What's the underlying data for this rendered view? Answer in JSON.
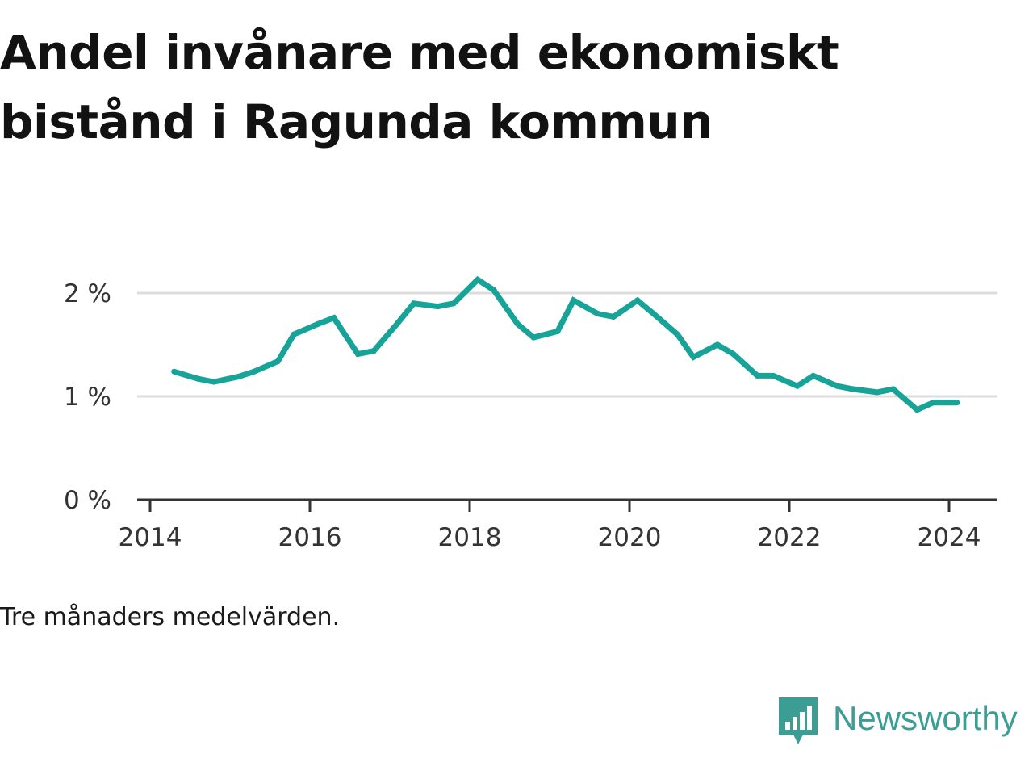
{
  "title": "Andel invånare med ekonomiskt bistånd i Ragunda kommun",
  "note": "Tre månaders medelvärden.",
  "brand": {
    "name": "Newsworthy",
    "color": "#3c9d94",
    "icon": "newsworthy-bar-chart-speech-bubble-icon"
  },
  "chart_data": {
    "type": "line",
    "title": "Andel invånare med ekonomiskt bistånd i Ragunda kommun",
    "xlabel": "",
    "ylabel": "",
    "x_ticks": [
      "2014",
      "2016",
      "2018",
      "2020",
      "2022",
      "2024"
    ],
    "y_ticks": [
      "0 %",
      "1 %",
      "2 %"
    ],
    "xlim": [
      2014,
      2024.5
    ],
    "ylim": [
      0,
      2.2
    ],
    "grid": true,
    "legend": "none",
    "line_color": "#17a398",
    "series": [
      {
        "x": [
          2014.3,
          2014.6,
          2014.8,
          2015.1,
          2015.3,
          2015.6,
          2015.8,
          2016.1,
          2016.3,
          2016.6,
          2016.8,
          2017.1,
          2017.3,
          2017.6,
          2017.8,
          2018.1,
          2018.3,
          2018.6,
          2018.8,
          2019.1,
          2019.3,
          2019.6,
          2019.8,
          2020.1,
          2020.3,
          2020.6,
          2020.8,
          2021.1,
          2021.3,
          2021.6,
          2021.8,
          2022.1,
          2022.3,
          2022.6,
          2022.8,
          2023.1,
          2023.3,
          2023.6,
          2023.8,
          2024.1
        ],
        "values": [
          1.24,
          1.17,
          1.14,
          1.19,
          1.24,
          1.34,
          1.6,
          1.7,
          1.76,
          1.41,
          1.44,
          1.71,
          1.9,
          1.87,
          1.9,
          2.13,
          2.03,
          1.7,
          1.57,
          1.63,
          1.93,
          1.8,
          1.77,
          1.93,
          1.8,
          1.6,
          1.38,
          1.5,
          1.41,
          1.2,
          1.2,
          1.1,
          1.2,
          1.1,
          1.07,
          1.04,
          1.07,
          0.87,
          0.94,
          0.94
        ]
      }
    ]
  }
}
